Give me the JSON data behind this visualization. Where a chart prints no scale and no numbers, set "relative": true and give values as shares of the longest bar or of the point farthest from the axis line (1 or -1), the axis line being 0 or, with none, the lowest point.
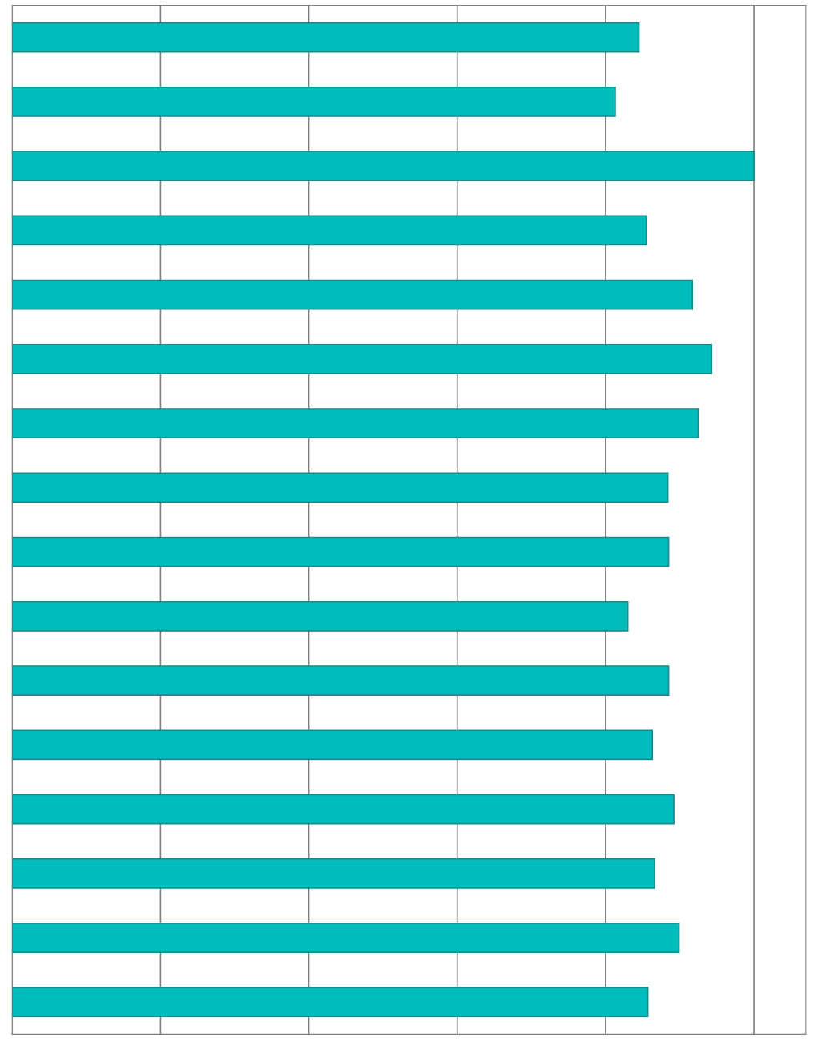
{
  "chart_data": {
    "type": "bar",
    "orientation": "horizontal",
    "relative": true,
    "categories": [
      null,
      null,
      null,
      null,
      null,
      null,
      null,
      null,
      null,
      null,
      null,
      null,
      null,
      null,
      null,
      null
    ],
    "values": [
      0.845,
      0.813,
      1,
      0.855,
      0.917,
      0.943,
      0.925,
      0.884,
      0.885,
      0.83,
      0.885,
      0.863,
      0.892,
      0.866,
      0.899,
      0.857
    ],
    "color": "#00bcbc",
    "grid": "x"
  }
}
